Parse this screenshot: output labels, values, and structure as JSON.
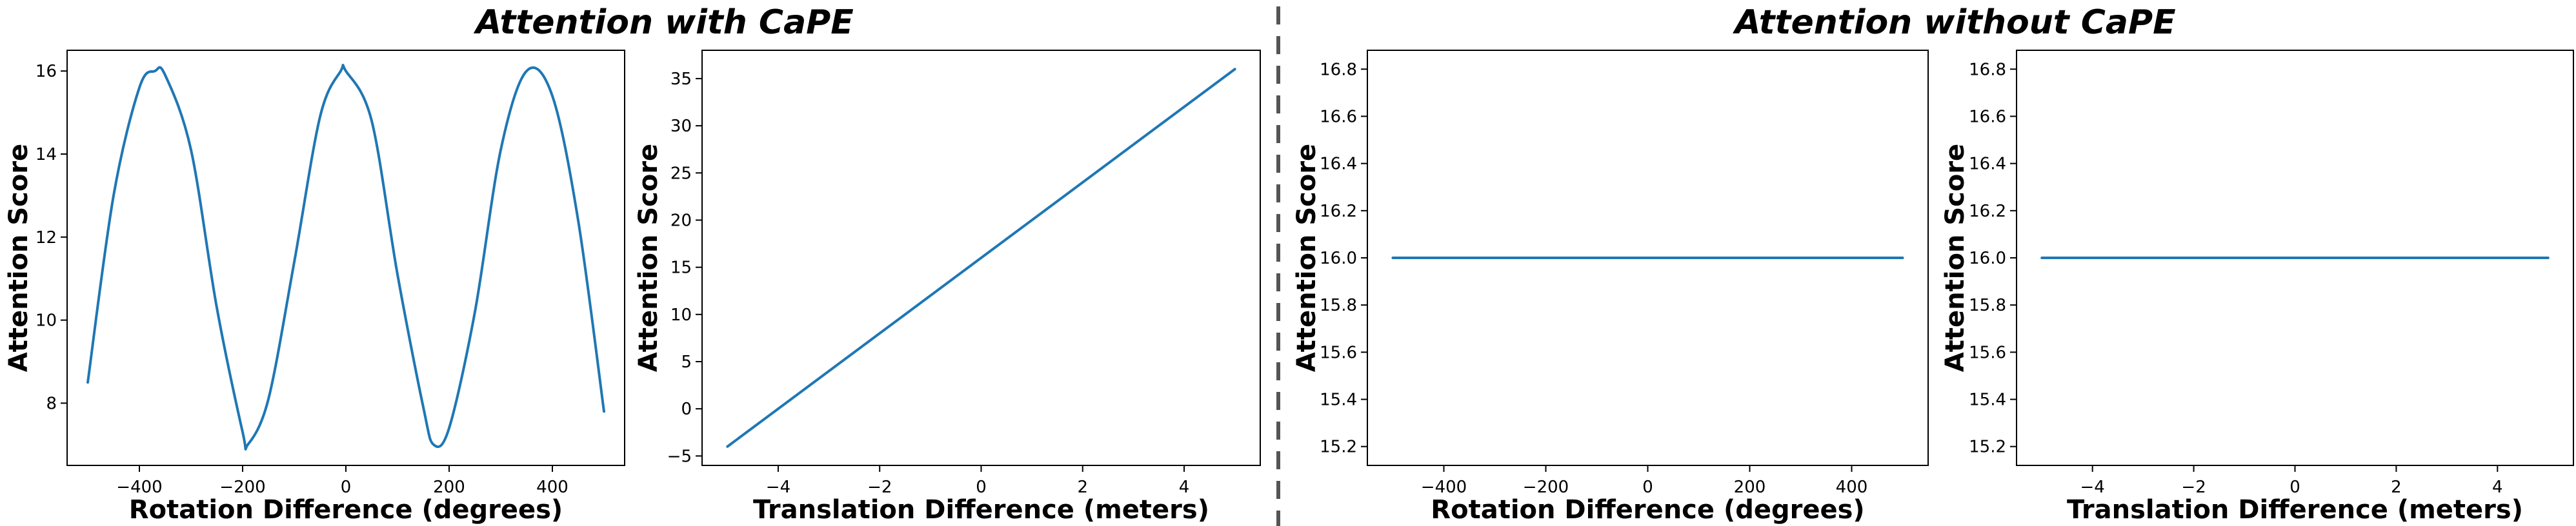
{
  "figure": {
    "titles": [
      "Attention with CaPE",
      "Attention without CaPE"
    ],
    "line_color": "#1f77b4"
  },
  "chart_data": [
    {
      "type": "line",
      "group": "Attention with CaPE",
      "xlabel": "Rotation Difference (degrees)",
      "ylabel": "Attention Score",
      "xlim": [
        -540,
        540
      ],
      "ylim": [
        6.5,
        16.5
      ],
      "xticks": [
        -400,
        -200,
        0,
        200,
        400
      ],
      "yticks": [
        8,
        10,
        12,
        14,
        16
      ],
      "xtick_labels": [
        "−400",
        "−200",
        "0",
        "200",
        "400"
      ],
      "ytick_labels": [
        "8",
        "10",
        "12",
        "14",
        "16"
      ],
      "grid": false,
      "series": [
        {
          "x": [
            -500,
            -450,
            -400,
            -370,
            -350,
            -300,
            -250,
            -200,
            -190,
            -150,
            -100,
            -50,
            -10,
            0,
            50,
            100,
            150,
            170,
            200,
            250,
            300,
            350,
            400,
            450,
            500
          ],
          "y": [
            8.5,
            13.0,
            15.6,
            16.0,
            15.9,
            14.1,
            10.3,
            7.3,
            7.0,
            8.1,
            11.4,
            14.9,
            16.0,
            16.0,
            14.8,
            11.1,
            7.9,
            7.0,
            7.4,
            10.2,
            14.1,
            16.0,
            15.4,
            12.4,
            7.8
          ]
        }
      ]
    },
    {
      "type": "line",
      "group": "Attention with CaPE",
      "xlabel": "Translation Difference (meters)",
      "ylabel": "Attention Score",
      "xlim": [
        -5.5,
        5.5
      ],
      "ylim": [
        -6,
        38
      ],
      "xticks": [
        -4,
        -2,
        0,
        2,
        4
      ],
      "yticks": [
        -5,
        0,
        5,
        10,
        15,
        20,
        25,
        30,
        35
      ],
      "xtick_labels": [
        "−4",
        "−2",
        "0",
        "2",
        "4"
      ],
      "ytick_labels": [
        "−5",
        "0",
        "5",
        "10",
        "15",
        "20",
        "25",
        "30",
        "35"
      ],
      "grid": false,
      "series": [
        {
          "x": [
            -5,
            5
          ],
          "y": [
            -4,
            36
          ]
        }
      ]
    },
    {
      "type": "line",
      "group": "Attention without CaPE",
      "xlabel": "Rotation Difference (degrees)",
      "ylabel": "Attention Score",
      "xlim": [
        -550,
        550
      ],
      "ylim": [
        15.12,
        16.88
      ],
      "xticks": [
        -400,
        -200,
        0,
        200,
        400
      ],
      "yticks": [
        15.2,
        15.4,
        15.6,
        15.8,
        16.0,
        16.2,
        16.4,
        16.6,
        16.8
      ],
      "xtick_labels": [
        "−400",
        "−200",
        "0",
        "200",
        "400"
      ],
      "ytick_labels": [
        "15.2",
        "15.4",
        "15.6",
        "15.8",
        "16.0",
        "16.2",
        "16.4",
        "16.6",
        "16.8"
      ],
      "grid": false,
      "series": [
        {
          "x": [
            -500,
            500
          ],
          "y": [
            16.0,
            16.0
          ]
        }
      ]
    },
    {
      "type": "line",
      "group": "Attention without CaPE",
      "xlabel": "Translation Difference (meters)",
      "ylabel": "Attention Score",
      "xlim": [
        -5.5,
        5.5
      ],
      "ylim": [
        15.12,
        16.88
      ],
      "xticks": [
        -4,
        -2,
        0,
        2,
        4
      ],
      "yticks": [
        15.2,
        15.4,
        15.6,
        15.8,
        16.0,
        16.2,
        16.4,
        16.6,
        16.8
      ],
      "xtick_labels": [
        "−4",
        "−2",
        "0",
        "2",
        "4"
      ],
      "ytick_labels": [
        "15.2",
        "15.4",
        "15.6",
        "15.8",
        "16.0",
        "16.2",
        "16.4",
        "16.6",
        "16.8"
      ],
      "grid": false,
      "series": [
        {
          "x": [
            -5,
            5
          ],
          "y": [
            16.0,
            16.0
          ]
        }
      ]
    }
  ]
}
